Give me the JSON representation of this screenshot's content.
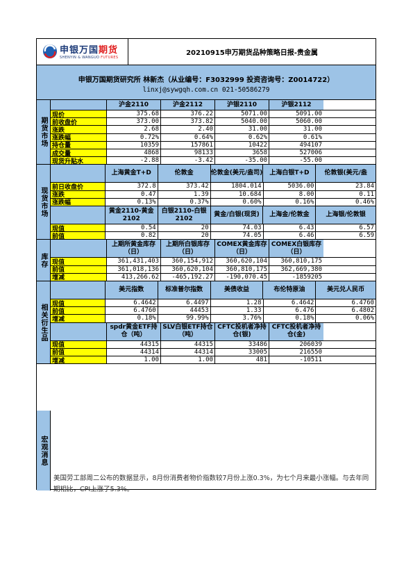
{
  "header": {
    "logo_cn_black": "申银万国",
    "logo_cn_red": "期货",
    "logo_en_black": "SHENYIN & WANGUO ",
    "logo_en_red": "FUTURES",
    "title": "20210915申万期货品种策略日报-贵金属"
  },
  "author": {
    "line1": "申银万国期货研究所 林新杰（从业编号：F3032999 投资咨询号：Z0014722）",
    "line2": "linxj@sywgqh.com.cn   021-50586279"
  },
  "colors": {
    "section_blue": "#9dc3e6",
    "label_yellow": "#ffff00"
  },
  "futures": {
    "section": "期货市场",
    "headers": [
      "沪金2110",
      "沪金2112",
      "沪银2110",
      "沪银2112"
    ],
    "rows": [
      {
        "label": "现价",
        "values": [
          "375.68",
          "376.22",
          "5071.00",
          "5091.00"
        ]
      },
      {
        "label": "前收盘价",
        "values": [
          "373.00",
          "373.82",
          "5040.00",
          "5060.00"
        ]
      },
      {
        "label": "涨跌",
        "values": [
          "2.68",
          "2.40",
          "31.00",
          "31.00"
        ]
      },
      {
        "label": "涨跌幅",
        "values": [
          "0.72%",
          "0.64%",
          "0.62%",
          "0.61%"
        ]
      },
      {
        "label": "持仓量",
        "values": [
          "10359",
          "157861",
          "10422",
          "494107"
        ]
      },
      {
        "label": "成交量",
        "values": [
          "4868",
          "98133",
          "3658",
          "527006"
        ]
      },
      {
        "label": "现货升贴水",
        "values": [
          "-2.88",
          "-3.42",
          "-35.00",
          "-55.00"
        ]
      }
    ]
  },
  "spot": {
    "section": "现货市场",
    "headers1": [
      "上海黄金T+D",
      "伦敦金",
      "伦敦金(美元/盎司)",
      "上海白银T+D",
      "伦敦银(美元/盎"
    ],
    "rows1": [
      {
        "label": "前日收盘价",
        "values": [
          "372.8",
          "373.42",
          "1804.014",
          "5036.00",
          "23.84"
        ]
      },
      {
        "label": "涨跌",
        "values": [
          "0.47",
          "1.39",
          "10.684",
          "8.00",
          "0.11"
        ]
      },
      {
        "label": "涨跌幅",
        "values": [
          "0.13%",
          "0.37%",
          "0.60%",
          "0.16%",
          "0.46%"
        ]
      }
    ],
    "headers2": [
      "黄金2110-黄金2102",
      "白银2110-白银2102",
      "黄金/白银(现货)",
      "上海金/伦敦金",
      "上海银/伦敦银"
    ],
    "rows2": [
      {
        "label": "现值",
        "values": [
          "0.54",
          "20",
          "74.03",
          "6.43",
          "6.57"
        ]
      },
      {
        "label": "前值",
        "values": [
          "0.82",
          "20",
          "74.05",
          "6.46",
          "6.59"
        ]
      }
    ]
  },
  "inventory": {
    "section": "库存",
    "headers": [
      "上期所黄金库存（日）",
      "上期所白银库存（日）",
      "COMEX黄金库存（日）",
      "COMEX白银库存（日）"
    ],
    "rows": [
      {
        "label": "现值",
        "values": [
          "361,431,403",
          "360,154,912",
          "360,620,104",
          "360,810,175"
        ]
      },
      {
        "label": "前值",
        "values": [
          "361,018,136",
          "360,620,104",
          "360,810,175",
          "362,669,380"
        ]
      },
      {
        "label": "增减",
        "values": [
          "413,266.62",
          "-465,192.27",
          "-190,070.45",
          "-1859205"
        ]
      }
    ]
  },
  "derivatives": {
    "section": "相关衍生品",
    "headers1": [
      "美元指数",
      "标准普尔指数",
      "美债收益",
      "布伦特原油",
      "美元兑人民币"
    ],
    "rows1": [
      {
        "label": "现值",
        "values": [
          "6.4642",
          "6.4497",
          "1.28",
          "6.4642",
          "6.4760"
        ]
      },
      {
        "label": "前值",
        "values": [
          "6.4760",
          "44453",
          "1.33",
          "6.476",
          "6.4802"
        ]
      },
      {
        "label": "增减",
        "values": [
          "0.18%",
          "99.99%",
          "3.76%",
          "0.18%",
          "0.06%"
        ]
      }
    ],
    "headers2": [
      "spdr黄金ETF持仓（吨）",
      "SLV白银ETF持仓（吨）",
      "CFTC投机者净持仓(银)",
      "CFTC投机者净持仓(金)"
    ],
    "rows2": [
      {
        "label": "现值",
        "values": [
          "44315",
          "44315",
          "33486",
          "206039"
        ]
      },
      {
        "label": "前值",
        "values": [
          "44314",
          "44314",
          "33005",
          "216550"
        ]
      },
      {
        "label": "增减",
        "values": [
          "1.00",
          "1.00",
          "481",
          "-10511"
        ]
      }
    ]
  },
  "macro": {
    "section": "宏观消息",
    "text": "美国劳工部周二公布的数据显示，8月份消费者物价指数较7月份上涨0.3%，为七个月来最小涨幅。与去年同期相比，CPI上涨了5.3%。"
  }
}
